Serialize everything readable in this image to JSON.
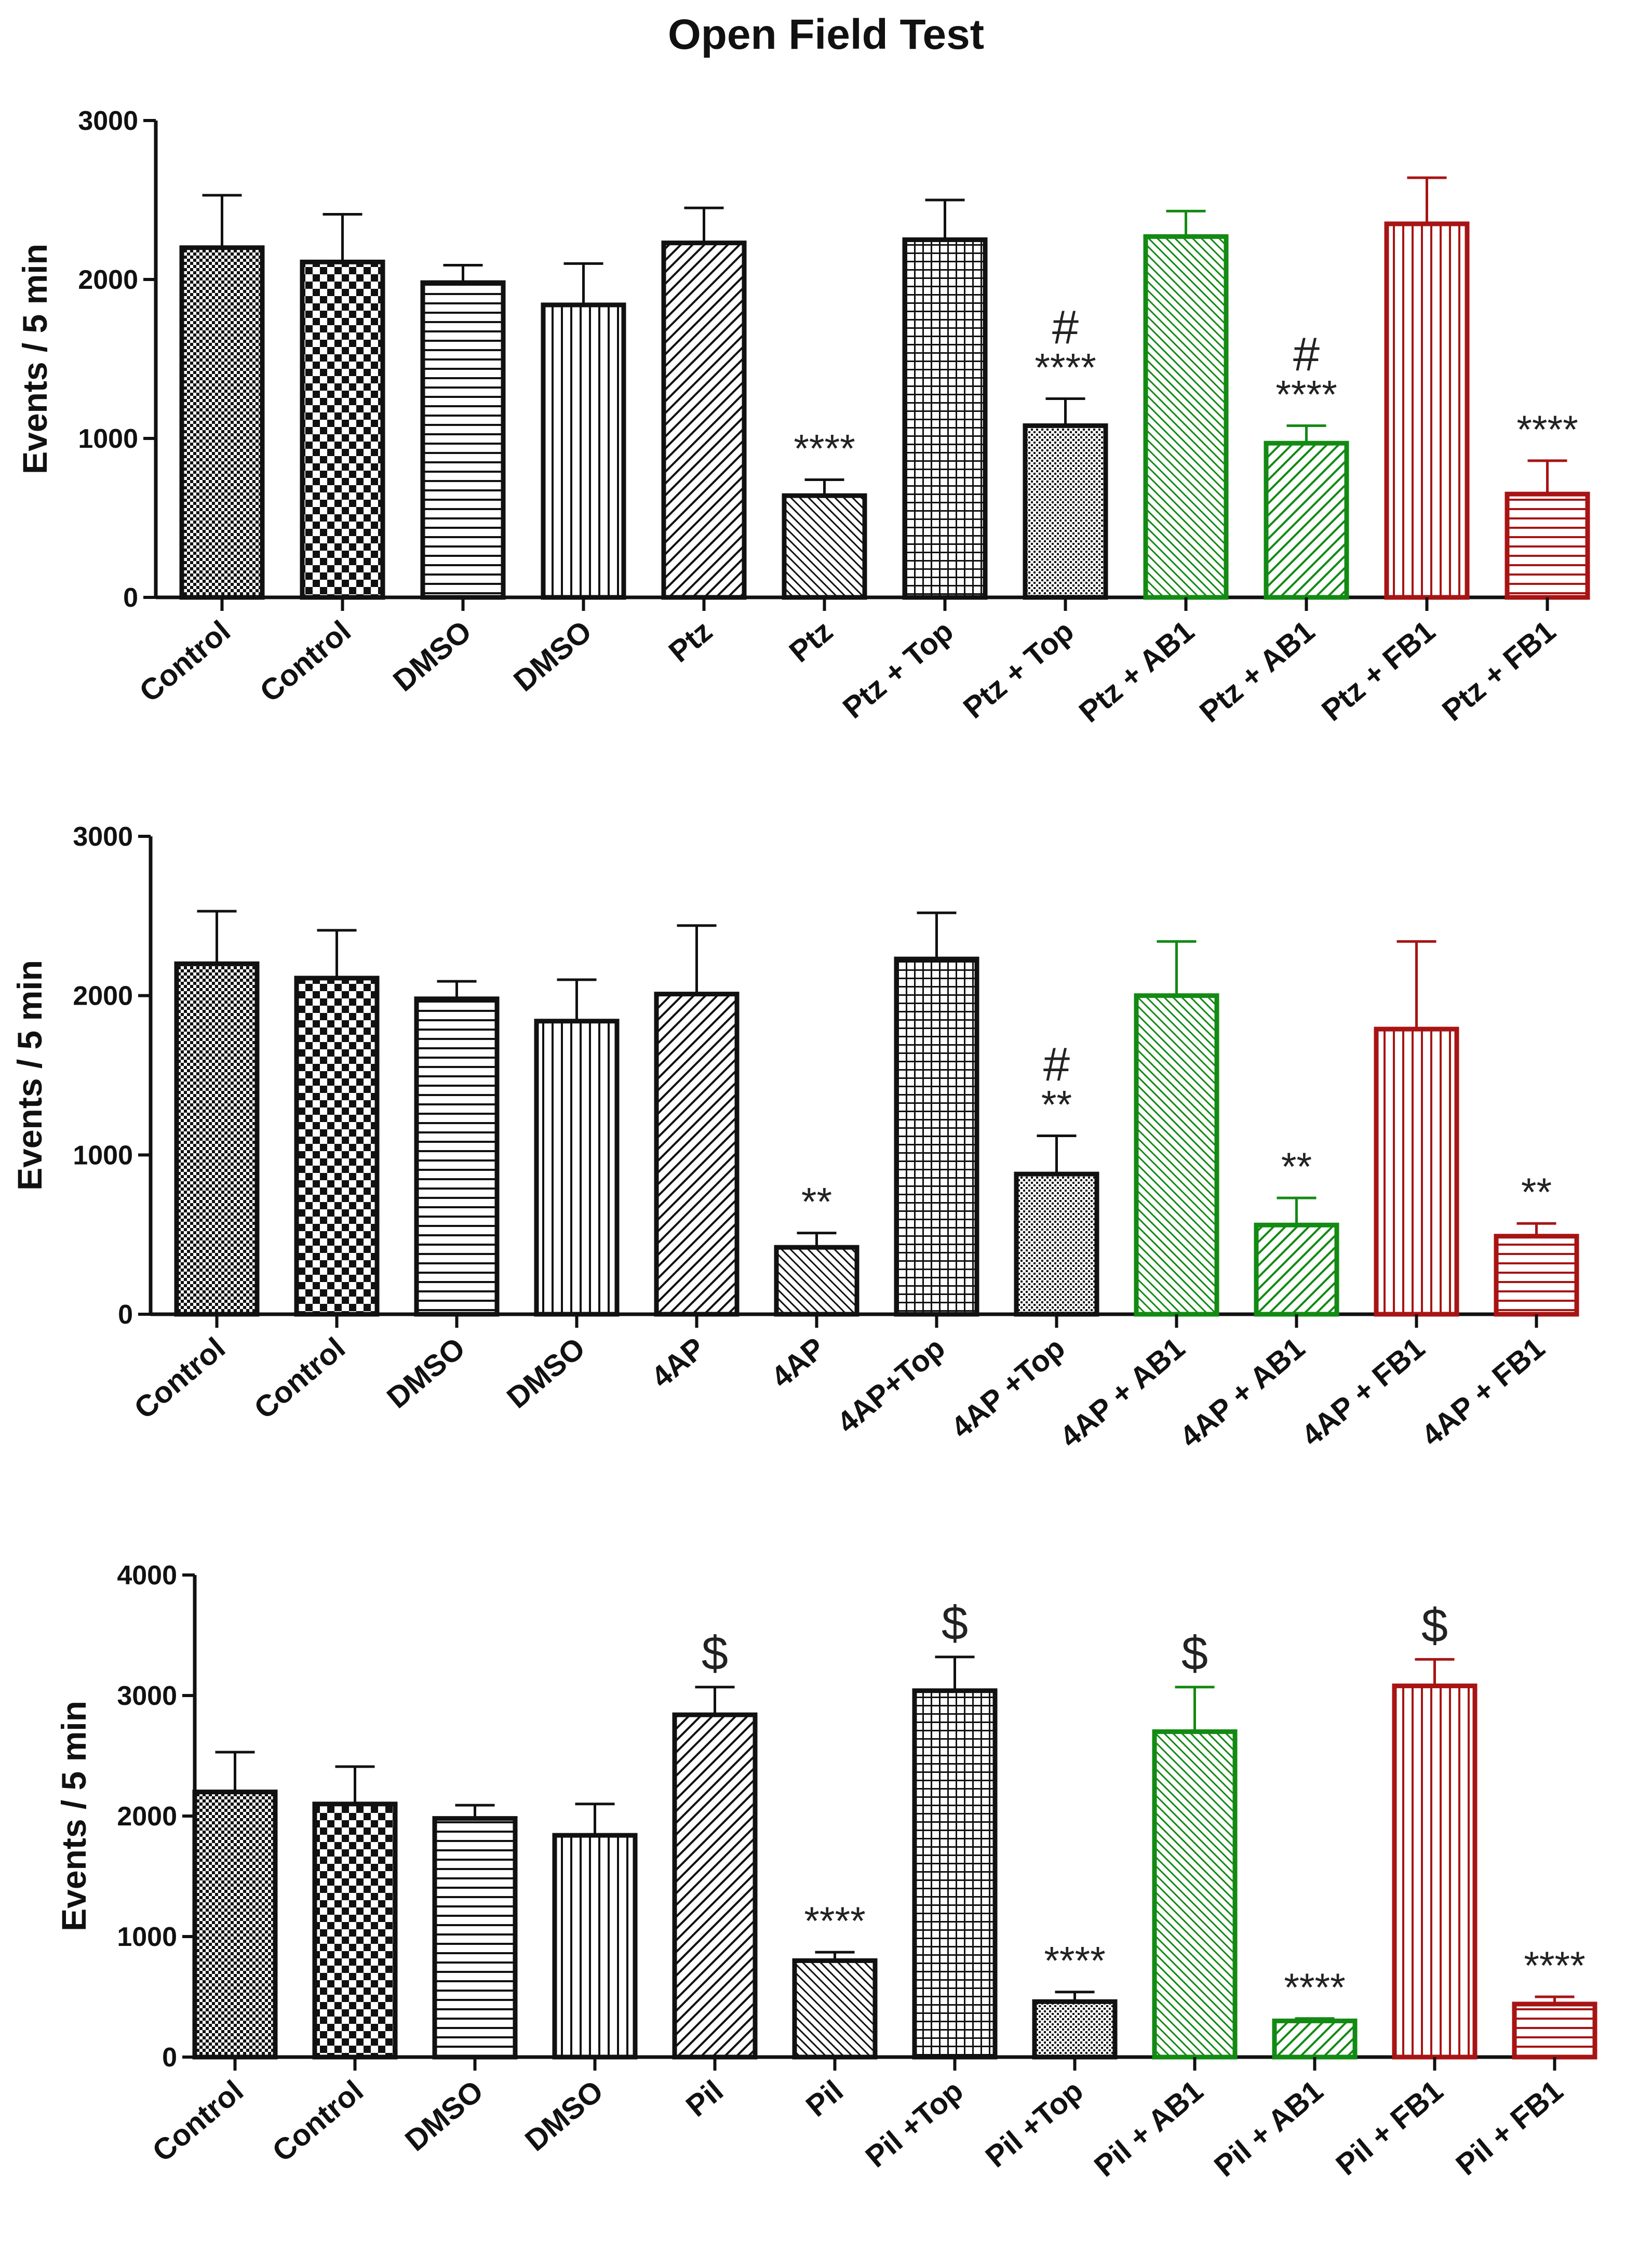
{
  "title": "Open Field Test",
  "colors": {
    "black": "#111111",
    "green": "#138a13",
    "red": "#a81414"
  },
  "chart_data": [
    {
      "type": "bar",
      "ylabel": "Events / 5 min",
      "ylim": [
        0,
        3000
      ],
      "yticks": [
        0,
        1000,
        2000,
        3000
      ],
      "categories": [
        "Control",
        "Control",
        "DMSO",
        "DMSO",
        "Ptz",
        "Ptz",
        "Ptz + Top",
        "Ptz + Top",
        "Ptz + AB1",
        "Ptz + AB1",
        "Ptz + FB1",
        "Ptz + FB1"
      ],
      "values": [
        2200,
        2110,
        1980,
        1840,
        2230,
        640,
        2250,
        1080,
        2270,
        970,
        2350,
        650
      ],
      "errors": [
        330,
        300,
        110,
        260,
        220,
        100,
        250,
        170,
        160,
        110,
        290,
        210
      ],
      "annotations": [
        "",
        "",
        "",
        "",
        "",
        "****",
        "",
        "#\n****",
        "",
        "#\n****",
        "",
        "****"
      ],
      "colors": [
        "black",
        "black",
        "black",
        "black",
        "black",
        "black",
        "black",
        "black",
        "green",
        "green",
        "red",
        "red"
      ],
      "patterns": [
        "checker-fine",
        "checker-coarse",
        "hlines",
        "vlines",
        "diag",
        "diag-rev",
        "grid",
        "dots",
        "diag-rev",
        "diag",
        "vlines",
        "hlines"
      ]
    },
    {
      "type": "bar",
      "ylabel": "Events / 5 min",
      "ylim": [
        0,
        3000
      ],
      "yticks": [
        0,
        1000,
        2000,
        3000
      ],
      "categories": [
        "Control",
        "Control",
        "DMSO",
        "DMSO",
        "4AP",
        "4AP",
        "4AP+Top",
        "4AP +Top",
        "4AP + AB1",
        "4AP + AB1",
        "4AP + FB1",
        "4AP + FB1"
      ],
      "values": [
        2200,
        2110,
        1980,
        1840,
        2010,
        420,
        2230,
        880,
        2000,
        560,
        1790,
        490
      ],
      "errors": [
        330,
        300,
        110,
        260,
        430,
        90,
        290,
        240,
        340,
        170,
        550,
        80
      ],
      "annotations": [
        "",
        "",
        "",
        "",
        "",
        "**",
        "",
        "#\n**",
        "",
        "**",
        "",
        "**"
      ],
      "colors": [
        "black",
        "black",
        "black",
        "black",
        "black",
        "black",
        "black",
        "black",
        "green",
        "green",
        "red",
        "red"
      ],
      "patterns": [
        "checker-fine",
        "checker-coarse",
        "hlines",
        "vlines",
        "diag",
        "diag-rev",
        "grid",
        "dots",
        "diag-rev",
        "diag",
        "vlines",
        "hlines"
      ]
    },
    {
      "type": "bar",
      "ylabel": "Events / 5 min",
      "ylim": [
        0,
        4000
      ],
      "yticks": [
        0,
        1000,
        2000,
        3000,
        4000
      ],
      "categories": [
        "Control",
        "Control",
        "DMSO",
        "DMSO",
        "Pil",
        "Pil",
        "Pil +Top",
        "Pil +Top",
        "Pil + AB1",
        "Pil + AB1",
        "Pil + FB1",
        "Pil + FB1"
      ],
      "values": [
        2200,
        2100,
        1980,
        1840,
        2840,
        800,
        3040,
        460,
        2700,
        300,
        3080,
        440
      ],
      "errors": [
        330,
        310,
        110,
        260,
        230,
        70,
        280,
        80,
        370,
        20,
        220,
        60
      ],
      "annotations": [
        "",
        "",
        "",
        "",
        "$",
        "****",
        "$",
        "****",
        "$",
        "****",
        "$",
        "****"
      ],
      "colors": [
        "black",
        "black",
        "black",
        "black",
        "black",
        "black",
        "black",
        "black",
        "green",
        "green",
        "red",
        "red"
      ],
      "patterns": [
        "checker-fine",
        "checker-coarse",
        "hlines",
        "vlines",
        "diag",
        "diag-rev",
        "grid",
        "dots",
        "diag-rev",
        "diag",
        "vlines",
        "hlines"
      ]
    }
  ]
}
